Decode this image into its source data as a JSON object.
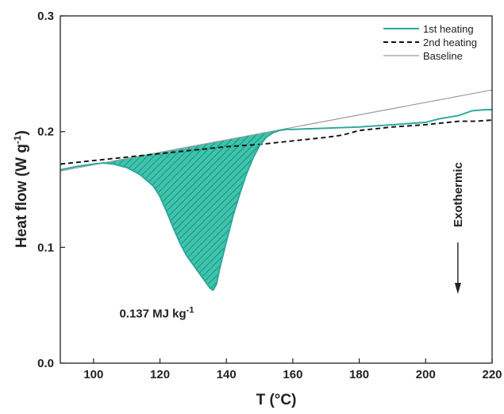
{
  "chart_data": {
    "type": "line",
    "xlabel": "T (°C)",
    "ylabel_main": "Heat flow (W g",
    "ylabel_sup": "-1",
    "ylabel_close": ")",
    "xlim": [
      90,
      220
    ],
    "ylim": [
      0.0,
      0.3
    ],
    "xticks": [
      100,
      120,
      140,
      160,
      180,
      200,
      220
    ],
    "yticks": [
      "0.0",
      "0.1",
      "0.2",
      "0.3"
    ],
    "grid": false,
    "legend_position": "top-right",
    "series": [
      {
        "name": "1st heating",
        "color": "#2aa79b",
        "style": "solid",
        "x": [
          90,
          95,
          100,
          103,
          106,
          110,
          114,
          118,
          120,
          122,
          124,
          126,
          128,
          130,
          132,
          134,
          135,
          136,
          137,
          138,
          140,
          142,
          144,
          146,
          148,
          150,
          152,
          154,
          156,
          158,
          160,
          170,
          180,
          190,
          200,
          204,
          210,
          214,
          218,
          220
        ],
        "y": [
          0.167,
          0.17,
          0.172,
          0.173,
          0.172,
          0.169,
          0.163,
          0.153,
          0.144,
          0.131,
          0.117,
          0.104,
          0.093,
          0.085,
          0.077,
          0.069,
          0.065,
          0.063,
          0.068,
          0.082,
          0.105,
          0.127,
          0.146,
          0.163,
          0.177,
          0.188,
          0.195,
          0.199,
          0.201,
          0.202,
          0.202,
          0.203,
          0.204,
          0.206,
          0.208,
          0.211,
          0.214,
          0.218,
          0.219,
          0.219
        ]
      },
      {
        "name": "2nd heating",
        "color": "#111111",
        "style": "dashed",
        "x": [
          90,
          100,
          110,
          120,
          130,
          140,
          150,
          160,
          170,
          175,
          180,
          190,
          200,
          210,
          215,
          220
        ],
        "y": [
          0.172,
          0.175,
          0.178,
          0.181,
          0.184,
          0.187,
          0.189,
          0.192,
          0.195,
          0.197,
          0.201,
          0.204,
          0.206,
          0.209,
          0.209,
          0.21
        ]
      },
      {
        "name": "Baseline",
        "color": "#9a9a9a",
        "style": "solid",
        "x": [
          90,
          220
        ],
        "y": [
          0.166,
          0.236
        ]
      }
    ],
    "annotations": {
      "enthalpy_label": "0.137 MJ kg",
      "enthalpy_sup": "-1",
      "enthalpy_at": [
        125,
        0.043
      ],
      "exothermic_label": "Exothermic",
      "exothermic_at": [
        214,
        0.055
      ]
    },
    "shaded_region": {
      "color": "#3cc4ad",
      "x_range": [
        103,
        157
      ]
    }
  }
}
